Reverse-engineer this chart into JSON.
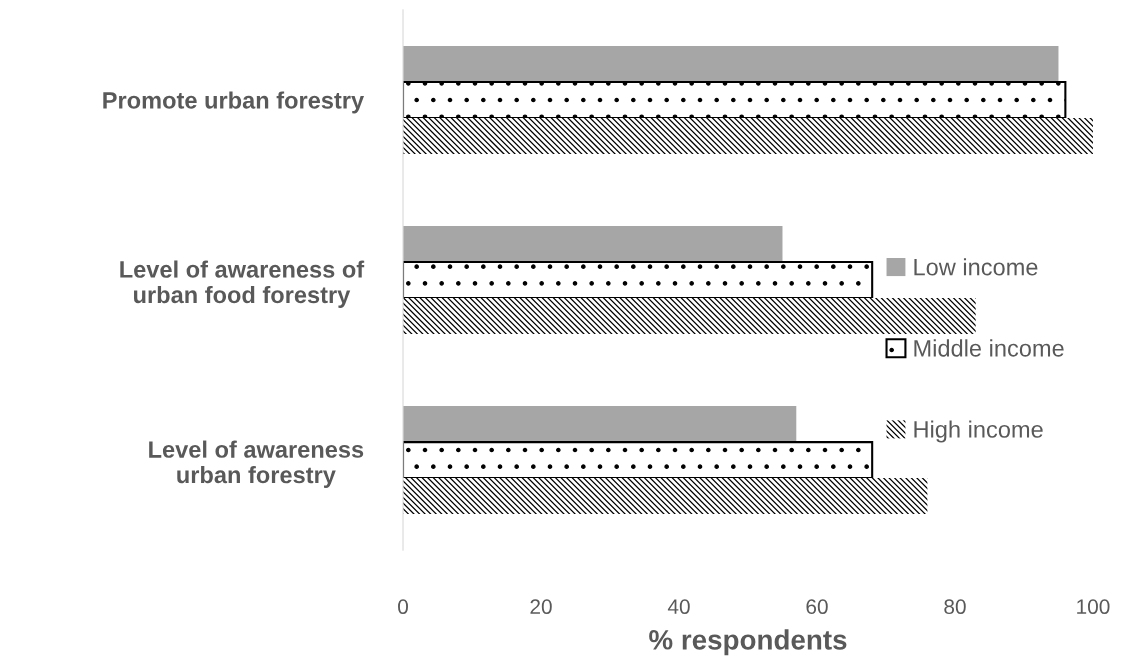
{
  "chart_data": {
    "type": "bar",
    "orientation": "horizontal",
    "xlabel": "% respondents",
    "categories": [
      "Promote urban forestry",
      "Level of awareness of\nurban food forestry",
      "Level of awareness\nurban forestry"
    ],
    "series": [
      {
        "name": "Low income",
        "color": "#a6a6a6",
        "values": [
          95,
          55,
          57
        ]
      },
      {
        "name": "Middle income",
        "color": "#000000",
        "values": [
          96,
          68,
          68
        ]
      },
      {
        "name": "High income",
        "color": "#000000",
        "values": [
          100,
          83,
          76
        ]
      }
    ],
    "xlim": [
      0,
      100
    ],
    "xticks": [
      0,
      20,
      40,
      60,
      80,
      100
    ],
    "grid": false,
    "legend": "right"
  }
}
